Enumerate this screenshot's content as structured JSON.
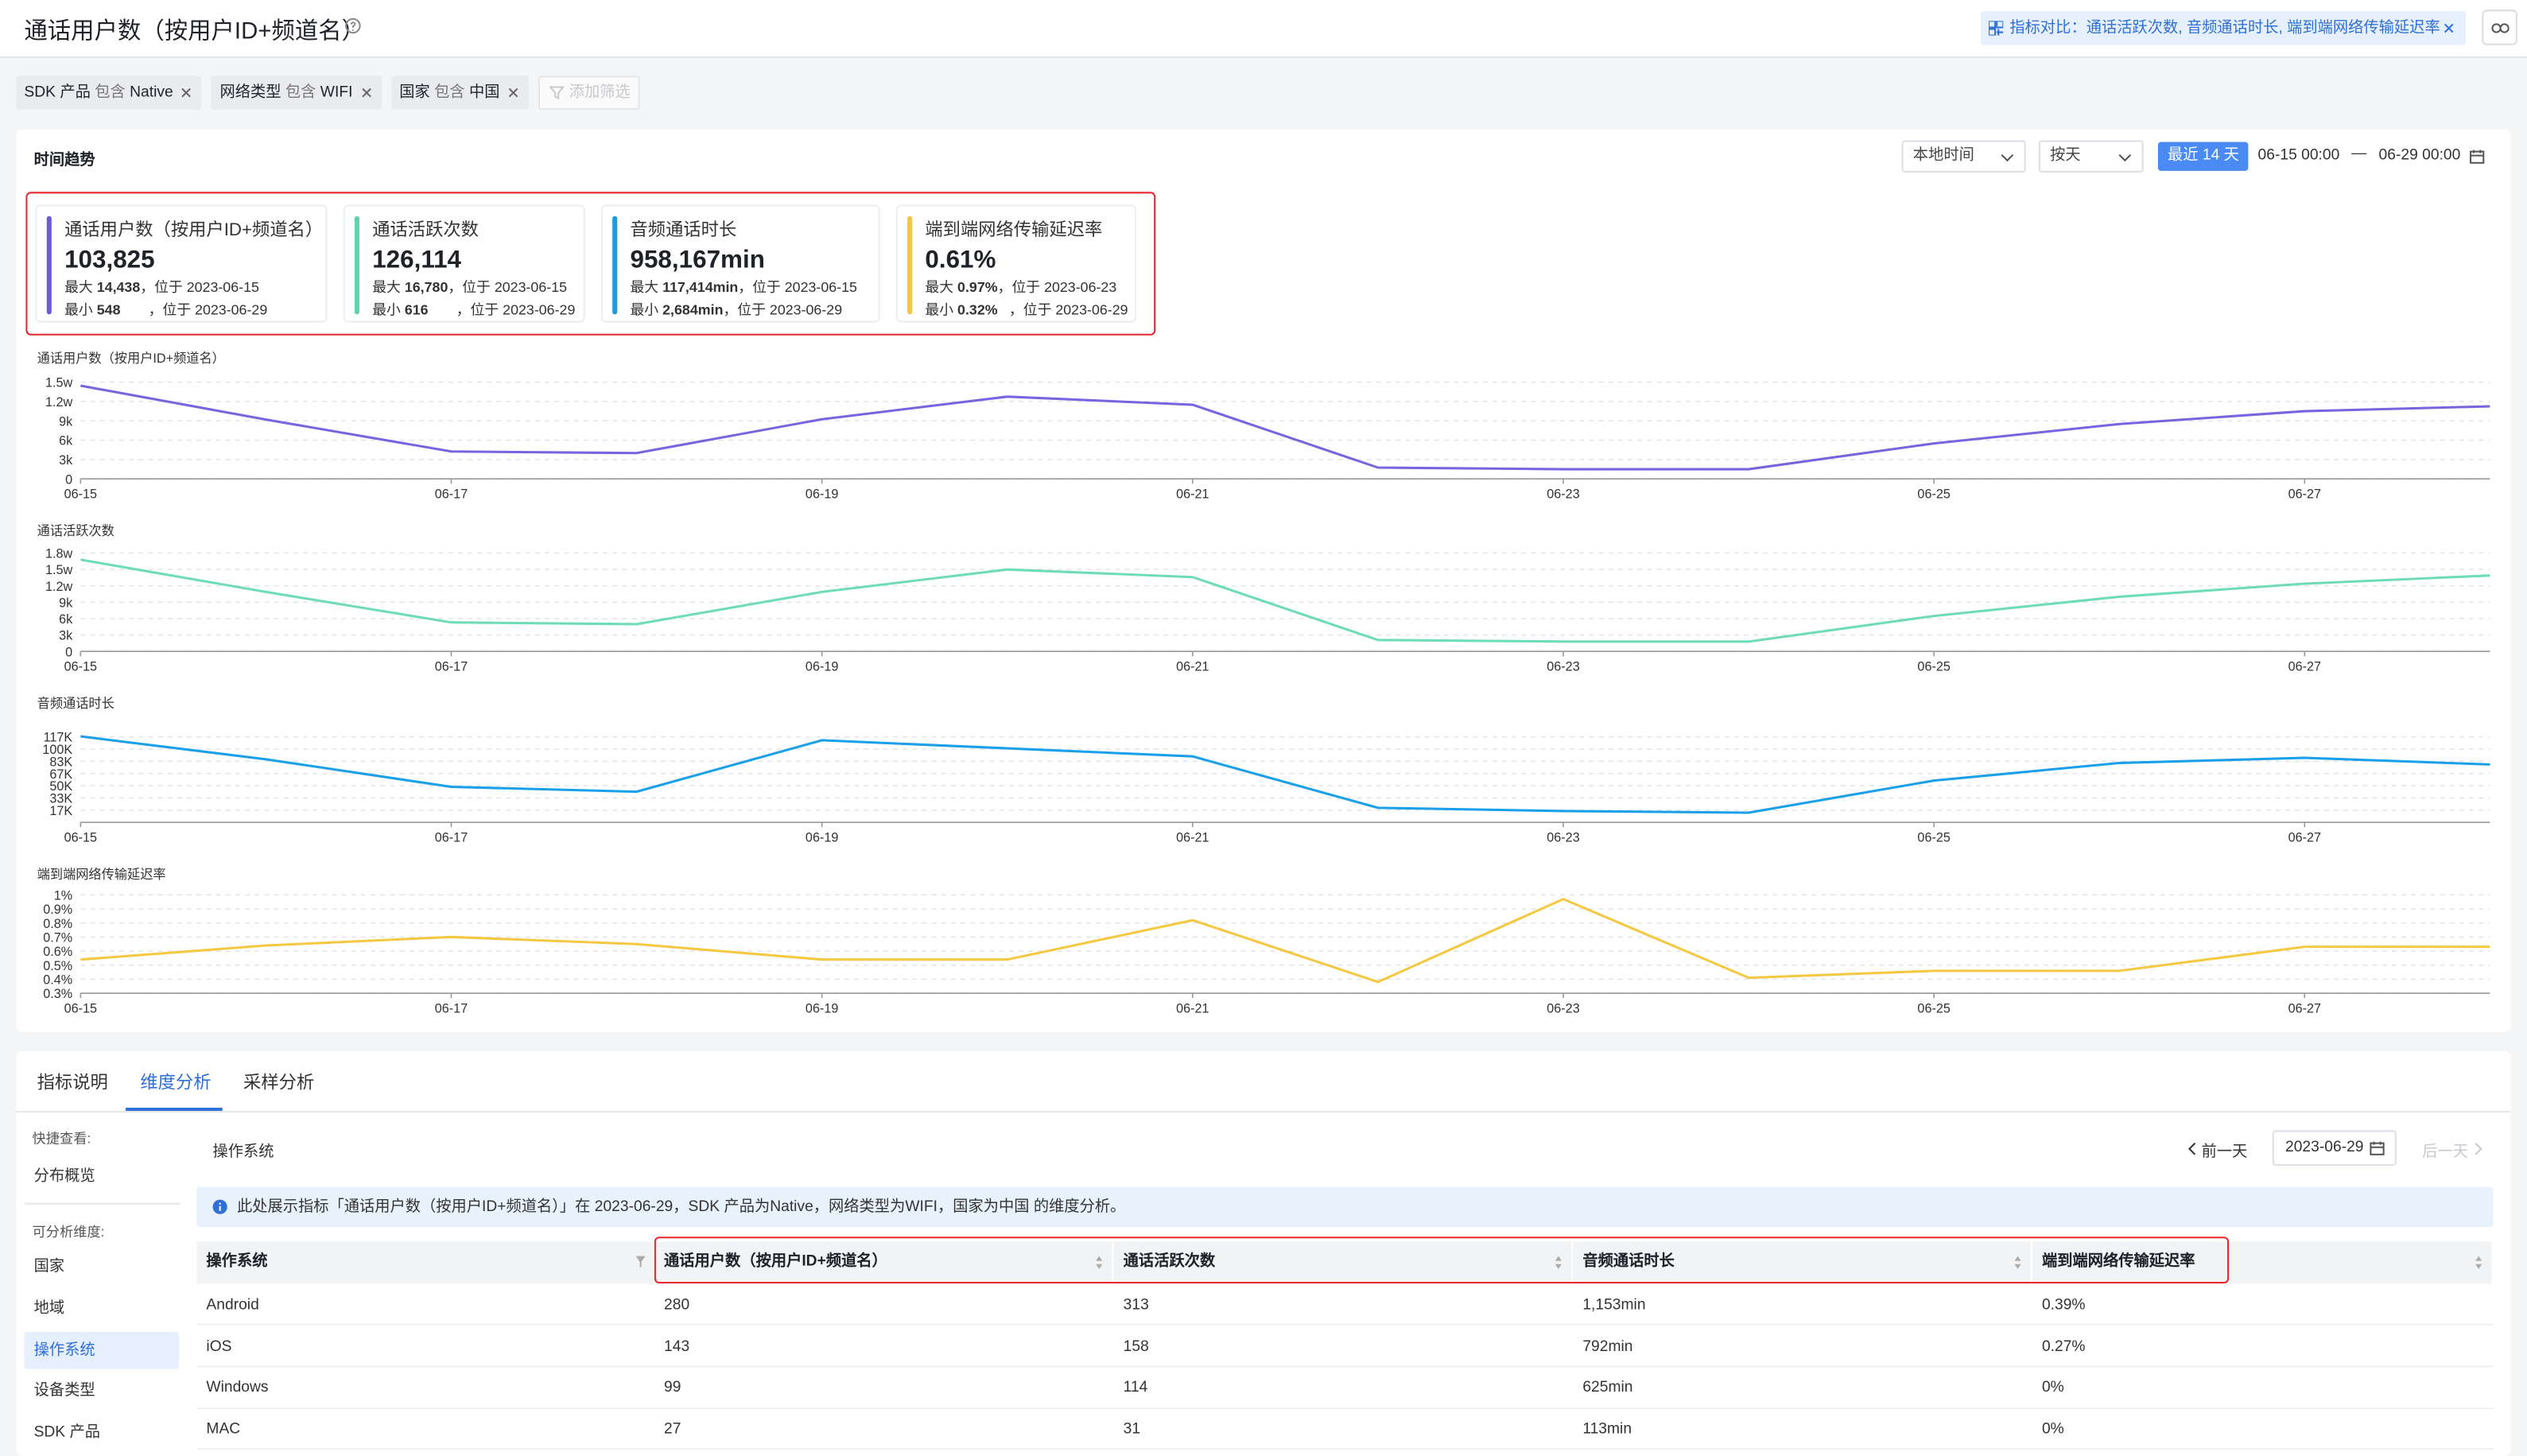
{
  "header": {
    "title": "通话用户数（按用户ID+频道名）",
    "compare": "指标对比：通话活跃次数, 音频通话时长, 端到端网络传输延迟率"
  },
  "filters": [
    {
      "field": "SDK 产品",
      "op": "包含",
      "value": "Native"
    },
    {
      "field": "网络类型",
      "op": "包含",
      "value": "WIFI"
    },
    {
      "field": "国家",
      "op": "包含",
      "value": "中国"
    }
  ],
  "add_filter": "添加筛选",
  "trend": {
    "title": "时间趋势",
    "timezone": "本地时间",
    "granularity": "按天",
    "range": "最近 14 天",
    "start": "06-15 00:00",
    "separator": "—",
    "end": "06-29 00:00",
    "cards": [
      {
        "name": "通话用户数（按用户ID+频道名）",
        "value": "103,825",
        "max_label": "最大",
        "max": "14,438",
        "max_at": "，位于 2023-06-15",
        "min_label": "最小",
        "min": "548",
        "min_at": "，位于 2023-06-29",
        "color": "#6a5bd6"
      },
      {
        "name": "通话活跃次数",
        "value": "126,114",
        "max_label": "最大",
        "max": "16,780",
        "max_at": "，位于 2023-06-15",
        "min_label": "最小",
        "min": "616",
        "min_at": "，位于 2023-06-29",
        "color": "#5ed3ae"
      },
      {
        "name": "音频通话时长",
        "value": "958,167min",
        "max_label": "最大",
        "max": "117,414min",
        "max_at": "，位于 2023-06-15",
        "min_label": "最小",
        "min": "2,684min",
        "min_at": "，位于 2023-06-29",
        "color": "#1a9be8"
      },
      {
        "name": "端到端网络传输延迟率",
        "value": "0.61%",
        "max_label": "最大",
        "max": "0.97%",
        "max_at": "，位于 2023-06-23",
        "min_label": "最小",
        "min": "0.32%",
        "min_at": "，位于 2023-06-29",
        "color": "#f6c443"
      }
    ]
  },
  "chart_data": [
    {
      "type": "line",
      "title": "通话用户数（按用户ID+频道名）",
      "color": "#7b63e0",
      "categories": [
        "06-15",
        null,
        "06-17",
        null,
        "06-19",
        null,
        "06-21",
        null,
        "06-23",
        null,
        "06-25",
        null,
        "06-27",
        null
      ],
      "values": [
        14438,
        9200,
        4250,
        4000,
        9250,
        12750,
        11500,
        1750,
        1500,
        1500,
        5500,
        8500,
        10500,
        11250
      ],
      "ylim": [
        0,
        15000
      ],
      "yticks": [
        0,
        {
          "value": 3000,
          "label": "3k"
        },
        {
          "value": 6000,
          "label": "6k"
        },
        {
          "value": 9000,
          "label": "9k"
        },
        {
          "value": 12000,
          "label": "1.2w"
        },
        {
          "value": 15000,
          "label": "1.5w"
        }
      ],
      "grid": true
    },
    {
      "type": "line",
      "title": "通话活跃次数",
      "color": "#6fdcb8",
      "categories": [
        "06-15",
        null,
        "06-17",
        null,
        "06-19",
        null,
        "06-21",
        null,
        "06-23",
        null,
        "06-25",
        null,
        "06-27",
        null
      ],
      "values": [
        16780,
        10900,
        5300,
        5000,
        10900,
        15000,
        13600,
        2100,
        1800,
        1800,
        6500,
        10000,
        12400,
        13900
      ],
      "ylim": [
        0,
        18000
      ],
      "yticks": [
        0,
        {
          "value": 3000,
          "label": "3k"
        },
        {
          "value": 6000,
          "label": "6k"
        },
        {
          "value": 9000,
          "label": "9k"
        },
        {
          "value": 12000,
          "label": "1.2w"
        },
        {
          "value": 15000,
          "label": "1.5w"
        },
        {
          "value": 18000,
          "label": "1.8w"
        }
      ],
      "grid": true
    },
    {
      "type": "line",
      "title": "音频通话时长",
      "color": "#1aa0e8",
      "categories": [
        "06-15",
        null,
        "06-17",
        null,
        "06-19",
        null,
        "06-21",
        null,
        "06-23",
        null,
        "06-25",
        null,
        "06-27",
        null
      ],
      "values": [
        117414,
        86000,
        48400,
        41800,
        112000,
        101000,
        90000,
        19800,
        15400,
        13200,
        57000,
        81000,
        88000,
        79000
      ],
      "ylim": [
        0,
        116667
      ],
      "yticks": [
        {
          "value": 16667,
          "label": "17K"
        },
        {
          "value": 33333,
          "label": "33K"
        },
        {
          "value": 50000,
          "label": "50K"
        },
        {
          "value": 66667,
          "label": "67K"
        },
        {
          "value": 83333,
          "label": "83K"
        },
        {
          "value": 100000,
          "label": "100K"
        },
        {
          "value": 116667,
          "label": "117K"
        }
      ],
      "grid": true
    },
    {
      "type": "line",
      "title": "端到端网络传输延迟率",
      "color": "#f5c842",
      "categories": [
        "06-15",
        null,
        "06-17",
        null,
        "06-19",
        null,
        "06-21",
        null,
        "06-23",
        null,
        "06-25",
        null,
        "06-27",
        null
      ],
      "values": [
        0.54,
        0.64,
        0.7,
        0.65,
        0.54,
        0.54,
        0.82,
        0.38,
        0.97,
        0.41,
        0.46,
        0.46,
        0.63,
        0.63
      ],
      "ylim": [
        0.3,
        1
      ],
      "yticks": [
        {
          "value": 0.3,
          "label": "0.3%"
        },
        {
          "value": 0.4,
          "label": "0.4%"
        },
        {
          "value": 0.5,
          "label": "0.5%"
        },
        {
          "value": 0.6,
          "label": "0.6%"
        },
        {
          "value": 0.7,
          "label": "0.7%"
        },
        {
          "value": 0.8,
          "label": "0.8%"
        },
        {
          "value": 0.9,
          "label": "0.9%"
        },
        {
          "value": 1,
          "label": "1%"
        }
      ],
      "grid": true
    }
  ],
  "tabs": [
    "指标说明",
    "维度分析",
    "采样分析"
  ],
  "sidebar": {
    "quick_label": "快捷查看:",
    "quick": [
      "分布概览"
    ],
    "dims_label": "可分析维度:",
    "dims": [
      "国家",
      "地域",
      "操作系统",
      "设备类型",
      "SDK 产品"
    ]
  },
  "analysis": {
    "dimension": "操作系统",
    "prev": "前一天",
    "date": "2023-06-29",
    "next": "后一天",
    "info": "此处展示指标「通话用户数（按用户ID+频道名）」在 2023-06-29，SDK 产品为Native，网络类型为WIFI，国家为中国 的维度分析。",
    "table": {
      "columns": [
        "操作系统",
        "通话用户数（按用户ID+频道名）",
        "通话活跃次数",
        "音频通话时长",
        "端到端网络传输延迟率"
      ],
      "rows": [
        [
          "Android",
          "280",
          "313",
          "1,153min",
          "0.39%"
        ],
        [
          "iOS",
          "143",
          "158",
          "792min",
          "0.27%"
        ],
        [
          "Windows",
          "99",
          "114",
          "625min",
          "0%"
        ],
        [
          "MAC",
          "27",
          "31",
          "113min",
          "0%"
        ]
      ]
    }
  }
}
